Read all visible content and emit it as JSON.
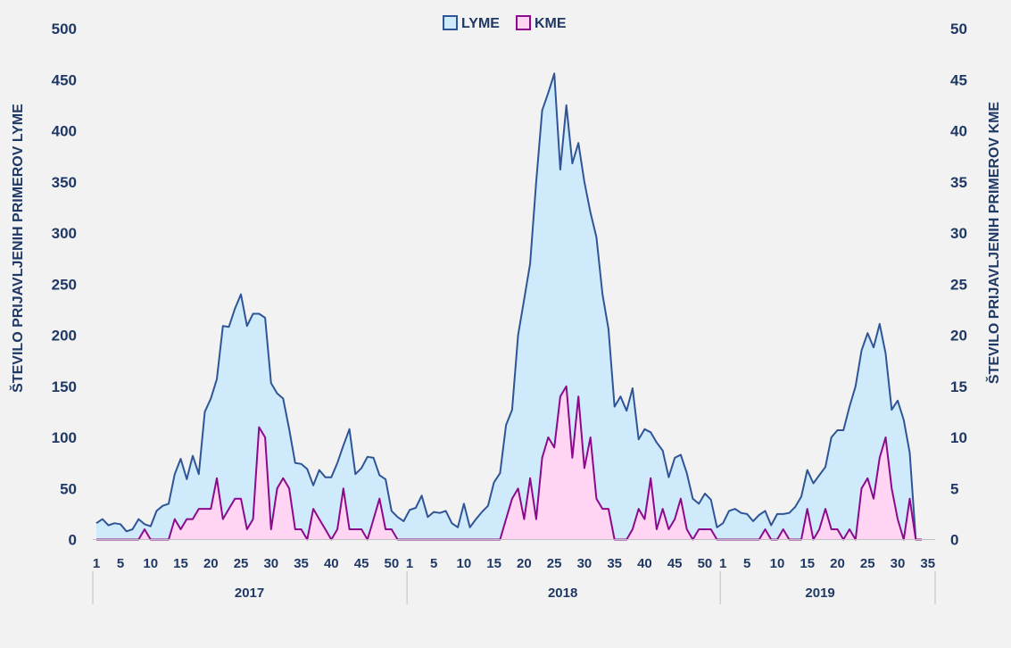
{
  "chart_data": {
    "type": "area",
    "title": "",
    "ylabel_left": "ŠTEVILO PRIJAVLJENIH PRIMEROV LYME",
    "ylabel_right": "ŠTEVILO PRIJAVLJENIH PRIMEROV KME",
    "ylim_left": [
      0,
      500
    ],
    "ylim_right": [
      0,
      50
    ],
    "yticks_left": [
      "0",
      "50",
      "100",
      "150",
      "200",
      "250",
      "300",
      "350",
      "400",
      "450",
      "500"
    ],
    "yticks_right": [
      "0",
      "5",
      "10",
      "15",
      "20",
      "25",
      "30",
      "35",
      "40",
      "45",
      "50"
    ],
    "legend": {
      "position": "top-center",
      "items": [
        "LYME",
        "KME"
      ]
    },
    "grid": false,
    "years": [
      {
        "label": "2017",
        "weeks": 52
      },
      {
        "label": "2018",
        "weeks": 52
      },
      {
        "label": "2019",
        "weeks": 35
      }
    ],
    "week_tick_labels": [
      "1",
      "5",
      "10",
      "15",
      "20",
      "25",
      "30",
      "35",
      "40",
      "45",
      "50"
    ],
    "week_tick_labels_last": [
      "1",
      "5",
      "10",
      "15",
      "20",
      "25",
      "30",
      "35"
    ],
    "series": [
      {
        "name": "LYME",
        "axis": "left",
        "color": "#2f5597",
        "fill": "#cfeafa",
        "values": [
          [
            16,
            20,
            14,
            16,
            15,
            8,
            10,
            20,
            15,
            13,
            28,
            33,
            35,
            64,
            79,
            59,
            82,
            64,
            125,
            138,
            157,
            209,
            208,
            226,
            240,
            209,
            221,
            221,
            217,
            153,
            143,
            138,
            108,
            75,
            74,
            69,
            53,
            68,
            61,
            61,
            75,
            92,
            108,
            64,
            70,
            81,
            80,
            63,
            59,
            28,
            22,
            18
          ],
          [
            29,
            31,
            43,
            22,
            27,
            26,
            28,
            16,
            12,
            35,
            12,
            20,
            27,
            33,
            56,
            65,
            112,
            127,
            200,
            235,
            270,
            350,
            420,
            437,
            456,
            362,
            425,
            368,
            388,
            350,
            320,
            296,
            240,
            206,
            130,
            140,
            126,
            148,
            98,
            108,
            105,
            95,
            87,
            61,
            80,
            83,
            65,
            40,
            35,
            45,
            39,
            12
          ],
          [
            16,
            28,
            30,
            26,
            25,
            18,
            24,
            28,
            14,
            25,
            25,
            26,
            32,
            42,
            68,
            55,
            63,
            71,
            100,
            107,
            107,
            130,
            150,
            185,
            202,
            188,
            211,
            182,
            127,
            136,
            117,
            85,
            0,
            0,
            0
          ]
        ]
      },
      {
        "name": "KME",
        "axis": "right",
        "color": "#8b0a8b",
        "fill": "#ffd5f3",
        "values": [
          [
            0,
            0,
            0,
            0,
            0,
            0,
            0,
            0,
            1,
            0,
            0,
            0,
            0,
            2,
            1,
            2,
            2,
            3,
            3,
            3,
            6,
            2,
            3,
            4,
            4,
            1,
            2,
            11,
            10,
            1,
            5,
            6,
            5,
            1,
            1,
            0,
            3,
            2,
            1,
            0,
            1,
            5,
            1,
            1,
            1,
            0,
            2,
            4,
            1,
            1,
            0,
            0
          ],
          [
            0,
            0,
            0,
            0,
            0,
            0,
            0,
            0,
            0,
            0,
            0,
            0,
            0,
            0,
            0,
            0,
            2,
            4,
            5,
            2,
            6,
            2,
            8,
            10,
            9,
            14,
            15,
            8,
            14,
            7,
            10,
            4,
            3,
            3,
            0,
            0,
            0,
            1,
            3,
            2,
            6,
            1,
            3,
            1,
            2,
            4,
            1,
            0,
            1,
            1,
            1,
            0
          ],
          [
            0,
            0,
            0,
            0,
            0,
            0,
            0,
            1,
            0,
            0,
            1,
            0,
            0,
            0,
            3,
            0,
            1,
            3,
            1,
            1,
            0,
            1,
            0,
            5,
            6,
            4,
            8,
            10,
            5,
            2,
            0,
            4,
            0,
            0,
            0
          ]
        ]
      }
    ]
  }
}
